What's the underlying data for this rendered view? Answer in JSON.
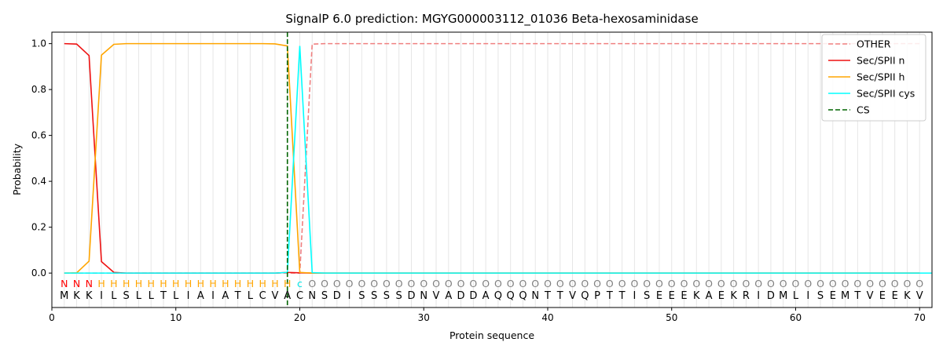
{
  "chart_data": {
    "type": "line",
    "title": "SignalP 6.0 prediction: MGYG000003112_01036 Beta-hexosaminidase",
    "xlabel": "Protein sequence",
    "ylabel": "Probability",
    "xlim": [
      0,
      71
    ],
    "ylim": [
      -0.15,
      1.05
    ],
    "xticks": [
      0,
      10,
      20,
      30,
      40,
      50,
      60,
      70
    ],
    "yticks": [
      0.0,
      0.2,
      0.4,
      0.6,
      0.8,
      1.0
    ],
    "grid": "vertical lines at each residue",
    "legend_position": "top-right",
    "sequence": [
      "M",
      "K",
      "K",
      "I",
      "L",
      "S",
      "L",
      "L",
      "T",
      "L",
      "I",
      "A",
      "I",
      "A",
      "T",
      "L",
      "C",
      "V",
      "A",
      "C",
      "N",
      "S",
      "D",
      "I",
      "S",
      "S",
      "S",
      "S",
      "D",
      "N",
      "V",
      "A",
      "D",
      "D",
      "A",
      "Q",
      "Q",
      "Q",
      "N",
      "T",
      "T",
      "V",
      "Q",
      "P",
      "T",
      "T",
      "I",
      "S",
      "E",
      "E",
      "E",
      "K",
      "A",
      "E",
      "K",
      "R",
      "I",
      "D",
      "M",
      "L",
      "I",
      "S",
      "E",
      "M",
      "T",
      "V",
      "E",
      "E",
      "K",
      "V"
    ],
    "annotations": [
      "N",
      "N",
      "N",
      "H",
      "H",
      "H",
      "H",
      "H",
      "H",
      "H",
      "H",
      "H",
      "H",
      "H",
      "H",
      "H",
      "H",
      "H",
      "H",
      "c",
      "O",
      "O",
      "O",
      "O",
      "O",
      "O",
      "O",
      "O",
      "O",
      "O",
      "O",
      "O",
      "O",
      "O",
      "O",
      "O",
      "O",
      "O",
      "O",
      "O",
      "O",
      "O",
      "O",
      "O",
      "O",
      "O",
      "O",
      "O",
      "O",
      "O",
      "O",
      "O",
      "O",
      "O",
      "O",
      "O",
      "O",
      "O",
      "O",
      "O",
      "O",
      "O",
      "O",
      "O",
      "O",
      "O",
      "O",
      "O",
      "O",
      "O"
    ],
    "annotation_colors": {
      "N": "#ff0000",
      "H": "#ffa500",
      "c": "#00e5e5",
      "O": "#808080"
    },
    "cleavage_site": 19,
    "series": [
      {
        "name": "OTHER",
        "color": "#f08080",
        "dash": "dashed",
        "values": [
          0,
          0,
          0,
          0,
          0,
          0,
          0,
          0,
          0,
          0,
          0,
          0,
          0,
          0,
          0,
          0,
          0,
          0,
          0,
          0,
          0.998,
          1,
          1,
          1,
          1,
          1,
          1,
          1,
          1,
          1,
          1,
          1,
          1,
          1,
          1,
          1,
          1,
          1,
          1,
          1,
          1,
          1,
          1,
          1,
          1,
          1,
          1,
          1,
          1,
          1,
          1,
          1,
          1,
          1,
          1,
          1,
          1,
          1,
          1,
          1,
          1,
          1,
          1,
          1,
          1,
          1,
          1,
          1,
          1,
          1
        ]
      },
      {
        "name": "Sec/SPII n",
        "color": "#ee1111",
        "dash": "solid",
        "values": [
          1.0,
          0.998,
          0.948,
          0.05,
          0.003,
          0,
          0,
          0,
          0,
          0,
          0,
          0,
          0,
          0,
          0,
          0,
          0,
          0,
          0.003,
          0.001,
          0,
          0,
          0,
          0,
          0,
          0,
          0,
          0,
          0,
          0,
          0,
          0,
          0,
          0,
          0,
          0,
          0,
          0,
          0,
          0,
          0,
          0,
          0,
          0,
          0,
          0,
          0,
          0,
          0,
          0,
          0,
          0,
          0,
          0,
          0,
          0,
          0,
          0,
          0,
          0,
          0,
          0,
          0,
          0,
          0,
          0,
          0,
          0,
          0,
          0
        ]
      },
      {
        "name": "Sec/SPII h",
        "color": "#ffa500",
        "dash": "solid",
        "values": [
          0,
          0.001,
          0.052,
          0.95,
          0.997,
          1,
          1,
          1,
          1,
          1,
          1,
          1,
          1,
          1,
          1,
          1,
          1,
          0.999,
          0.99,
          0.003,
          0,
          0,
          0,
          0,
          0,
          0,
          0,
          0,
          0,
          0,
          0,
          0,
          0,
          0,
          0,
          0,
          0,
          0,
          0,
          0,
          0,
          0,
          0,
          0,
          0,
          0,
          0,
          0,
          0,
          0,
          0,
          0,
          0,
          0,
          0,
          0,
          0,
          0,
          0,
          0,
          0,
          0,
          0,
          0,
          0,
          0,
          0,
          0,
          0,
          0
        ]
      },
      {
        "name": "Sec/SPII cys",
        "color": "#00ffff",
        "dash": "solid",
        "values": [
          0,
          0,
          0,
          0,
          0,
          0,
          0,
          0,
          0,
          0,
          0,
          0,
          0,
          0,
          0,
          0,
          0,
          0,
          0.003,
          0.99,
          0.002,
          0,
          0,
          0,
          0,
          0,
          0,
          0,
          0,
          0,
          0,
          0,
          0,
          0,
          0,
          0,
          0,
          0,
          0,
          0,
          0,
          0,
          0,
          0,
          0,
          0,
          0,
          0,
          0,
          0,
          0,
          0,
          0,
          0,
          0,
          0,
          0,
          0,
          0,
          0,
          0,
          0,
          0,
          0,
          0,
          0,
          0,
          0,
          0,
          0,
          0
        ]
      }
    ],
    "cs_series": {
      "name": "CS",
      "color": "#006400",
      "dash": "dashed"
    }
  }
}
